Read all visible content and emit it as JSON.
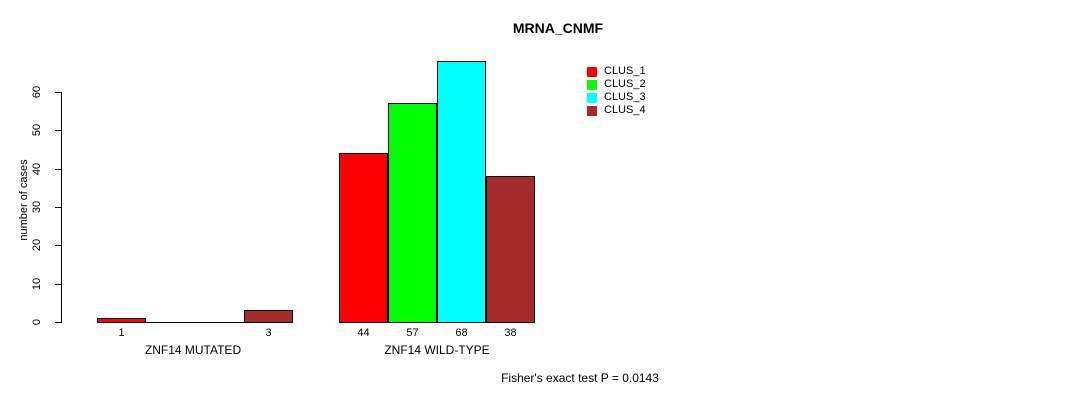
{
  "title": "MRNA_CNMF",
  "footer": "Fisher's exact test P = 0.0143",
  "y_axis": {
    "label": "number of cases",
    "ticks": [
      0,
      10,
      20,
      30,
      40,
      50,
      60
    ]
  },
  "legend": {
    "position": "top-right",
    "items": [
      {
        "label": "CLUS_1",
        "color": "#ff0000"
      },
      {
        "label": "CLUS_2",
        "color": "#00ff00"
      },
      {
        "label": "CLUS_3",
        "color": "#00ffff"
      },
      {
        "label": "CLUS_4",
        "color": "#a52a2a"
      }
    ]
  },
  "chart_data": {
    "type": "bar",
    "title": "MRNA_CNMF",
    "categories": [
      "ZNF14 MUTATED",
      "ZNF14 WILD-TYPE"
    ],
    "series": [
      {
        "name": "CLUS_1",
        "color": "#ff0000",
        "values": [
          1,
          44
        ]
      },
      {
        "name": "CLUS_2",
        "color": "#00ff00",
        "values": [
          0,
          57
        ]
      },
      {
        "name": "CLUS_3",
        "color": "#00ffff",
        "values": [
          0,
          68
        ]
      },
      {
        "name": "CLUS_4",
        "color": "#a52a2a",
        "values": [
          3,
          38
        ]
      }
    ],
    "visible_bar_value_labels": [
      "1",
      "3",
      "44",
      "57",
      "68",
      "38"
    ],
    "xlabel": "",
    "ylabel": "number of cases",
    "ylim": [
      0,
      68
    ],
    "yticks": [
      0,
      10,
      20,
      30,
      40,
      50,
      60
    ],
    "grid": false,
    "legend_position": "top-right",
    "annotation": "Fisher's exact test P = 0.0143"
  }
}
